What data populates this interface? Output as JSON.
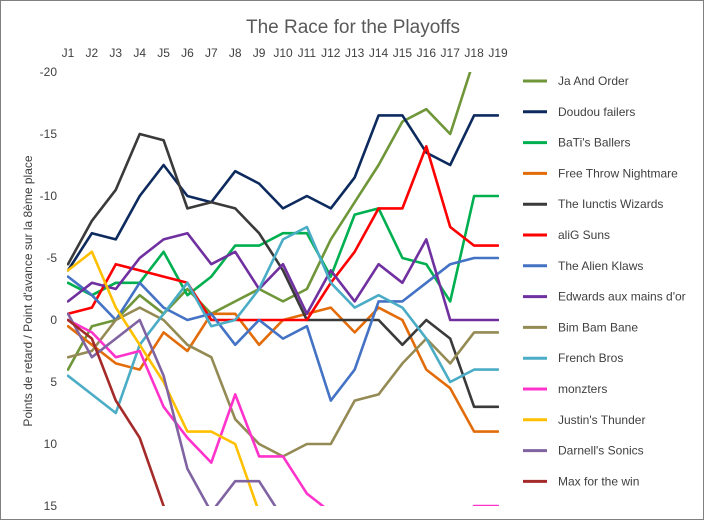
{
  "chart_data": {
    "type": "line",
    "title": "The Race for the Playoffs",
    "xlabel": "",
    "ylabel": "Points de retard / Point d'avance sur la 8ème place",
    "categories": [
      "J1",
      "J2",
      "J3",
      "J4",
      "J5",
      "J6",
      "J7",
      "J8",
      "J9",
      "J10",
      "J11",
      "J12",
      "J13",
      "J14",
      "J15",
      "J16",
      "J17",
      "J18",
      "J19"
    ],
    "y_ticks": [
      "-20",
      "-15",
      "-10",
      "-5",
      "0",
      "5",
      "10",
      "15"
    ],
    "ylim": [
      -20,
      15
    ],
    "y_inverted": true,
    "grid": false,
    "legend_position": "right",
    "series": [
      {
        "name": "Ja And Order",
        "color": "#70963a",
        "values": [
          4,
          0.5,
          0,
          -2,
          -0.5,
          -2.5,
          -0.5,
          -1.5,
          -2.5,
          -1.5,
          -2.5,
          -6.5,
          -9.5,
          -12.5,
          -16,
          -17,
          -15,
          -21,
          null
        ]
      },
      {
        "name": "Doudou failers",
        "color": "#0d2a5e",
        "values": [
          -4,
          -7,
          -6.5,
          -10,
          -12.5,
          -10,
          -9.5,
          -12,
          -11,
          -9,
          -10,
          -9,
          -11.5,
          -16.5,
          -16.5,
          -13.5,
          -12.5,
          -16.5,
          -16.5
        ]
      },
      {
        "name": "BaTi's Ballers",
        "color": "#00b050",
        "values": [
          -3,
          -2,
          -3,
          -3,
          -5.5,
          -2,
          -3.5,
          -6,
          -6,
          -7,
          -7,
          -3.5,
          -8.5,
          -9,
          -5,
          -4.5,
          -1.5,
          -10,
          -10
        ]
      },
      {
        "name": "Free Throw Nightmare",
        "color": "#e36c0a",
        "values": [
          0.5,
          2,
          3.5,
          4,
          1,
          2.5,
          -0.5,
          -0.5,
          2,
          0,
          -0.5,
          -1,
          1,
          -1,
          0,
          4,
          5.5,
          9,
          9
        ]
      },
      {
        "name": "The Iunctis Wizards",
        "color": "#3a3a3a",
        "values": [
          -4.5,
          -8,
          -10.5,
          -15,
          -14.5,
          -9,
          -9.5,
          -9,
          -7,
          -4,
          0,
          0,
          0,
          0,
          2,
          0,
          1.5,
          7,
          7
        ]
      },
      {
        "name": "aliG Suns",
        "color": "#ff0000",
        "values": [
          -0.5,
          -1,
          -4.5,
          -4,
          -3.5,
          -3,
          0,
          0,
          0,
          0,
          0,
          -3,
          -5.5,
          -9,
          -9,
          -14,
          -7.5,
          -6,
          -6
        ]
      },
      {
        "name": "The Alien Klaws",
        "color": "#4472c4",
        "values": [
          -3.5,
          -2,
          0,
          -3,
          -1,
          0,
          -0.5,
          2,
          0,
          1.5,
          0.5,
          6.5,
          4,
          -1.5,
          -1.5,
          -3,
          -4.5,
          -5,
          -5
        ]
      },
      {
        "name": "Edwards aux mains d'or",
        "color": "#7030a0",
        "values": [
          -1.5,
          -3,
          -2.5,
          -5,
          -6.5,
          -7,
          -4.5,
          -5.5,
          -2.5,
          -4.5,
          -0.5,
          -4,
          -1.5,
          -4.5,
          -3,
          -6.5,
          0,
          0,
          0
        ]
      },
      {
        "name": "Bim Bam Bane",
        "color": "#948a54",
        "values": [
          3,
          2.5,
          0,
          -1,
          0,
          2,
          3,
          8,
          10,
          11,
          10,
          10,
          6.5,
          6,
          3.5,
          1.5,
          3.5,
          1,
          1
        ]
      },
      {
        "name": "French Bros",
        "color": "#4bacc6",
        "values": [
          4.5,
          6,
          7.5,
          2,
          -0.5,
          -3,
          0.5,
          0,
          -2.5,
          -6.5,
          -7.5,
          -3,
          -1,
          -2,
          -1,
          1.5,
          5,
          4,
          4
        ]
      },
      {
        "name": "monzters",
        "color": "#ff33cc",
        "values": [
          0,
          1,
          3,
          2.5,
          7,
          9.5,
          11.5,
          6,
          11,
          11,
          14,
          15.5,
          null,
          null,
          null,
          null,
          null,
          15,
          15
        ]
      },
      {
        "name": "Justin's Thunder",
        "color": "#ffc000",
        "values": [
          -4,
          -5.5,
          -1,
          2,
          5,
          9,
          9,
          10,
          15.5,
          null,
          null,
          null,
          null,
          null,
          null,
          null,
          null,
          null,
          null
        ]
      },
      {
        "name": "Darnell's Sonics",
        "color": "#8064a2",
        "values": [
          -0.5,
          3,
          1.5,
          0,
          4.5,
          12,
          15.5,
          13,
          13,
          16,
          null,
          null,
          null,
          null,
          null,
          null,
          null,
          null,
          null
        ]
      },
      {
        "name": "Max for the win",
        "color": "#a52a2a",
        "values": [
          0,
          1.5,
          6.5,
          9.5,
          15,
          null,
          null,
          null,
          null,
          null,
          null,
          null,
          null,
          null,
          null,
          null,
          null,
          null,
          null
        ]
      }
    ]
  }
}
